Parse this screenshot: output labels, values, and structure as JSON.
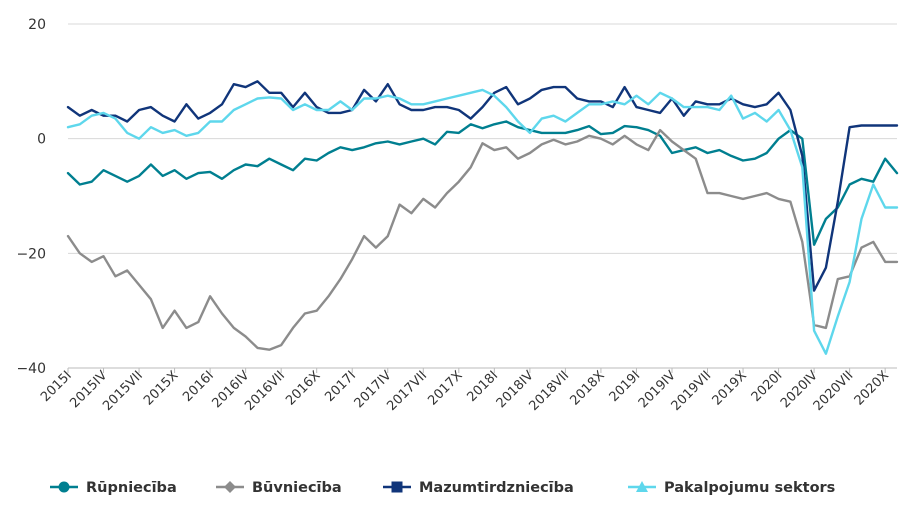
{
  "chart_data": {
    "type": "line",
    "x": [
      "2015I",
      "2015II",
      "2015III",
      "2015IV",
      "2015V",
      "2015VI",
      "2015VII",
      "2015VIII",
      "2015IX",
      "2015X",
      "2015XI",
      "2015XII",
      "2016I",
      "2016II",
      "2016III",
      "2016IV",
      "2016V",
      "2016VI",
      "2016VII",
      "2016VIII",
      "2016IX",
      "2016X",
      "2016XI",
      "2016XII",
      "2017I",
      "2017II",
      "2017III",
      "2017IV",
      "2017V",
      "2017VI",
      "2017VII",
      "2017VIII",
      "2017IX",
      "2017X",
      "2017XI",
      "2017XII",
      "2018I",
      "2018II",
      "2018III",
      "2018IV",
      "2018V",
      "2018VI",
      "2018VII",
      "2018VIII",
      "2018IX",
      "2018X",
      "2018XI",
      "2018XII",
      "2019I",
      "2019II",
      "2019III",
      "2019IV",
      "2019V",
      "2019VI",
      "2019VII",
      "2019VIII",
      "2019IX",
      "2019X",
      "2019XI",
      "2019XII",
      "2020I",
      "2020II",
      "2020III",
      "2020IV",
      "2020V",
      "2020VI",
      "2020VII",
      "2020VIII",
      "2020IX",
      "2020X",
      "2020XI"
    ],
    "x_tick_labels": [
      "2015I",
      "2015IV",
      "2015VII",
      "2015X",
      "2016I",
      "2016IV",
      "2016VII",
      "2016X",
      "2017I",
      "2017IV",
      "2017VII",
      "2017X",
      "2018I",
      "2018IV",
      "2018VII",
      "2018X",
      "2019I",
      "2019IV",
      "2019VII",
      "2019X",
      "2020I",
      "2020IV",
      "2020VII",
      "2020X"
    ],
    "y_ticks": [
      "20",
      "0",
      "−20",
      "−40"
    ],
    "ylim": [
      -40,
      20
    ],
    "grid": true,
    "legend_position": "bottom",
    "series": [
      {
        "name": "Rūpniecība",
        "color": "#007f90",
        "marker": "circle",
        "values": [
          -6,
          -8,
          -7.5,
          -5.5,
          -6.5,
          -7.5,
          -6.5,
          -4.5,
          -6.5,
          -5.5,
          -7,
          -6,
          -5.8,
          -7,
          -5.5,
          -4.5,
          -4.8,
          -3.5,
          -4.5,
          -5.5,
          -3.5,
          -3.8,
          -2.5,
          -1.5,
          -2,
          -1.5,
          -0.8,
          -0.5,
          -1,
          -0.5,
          0,
          -1,
          1.2,
          1,
          2.5,
          1.8,
          2.5,
          3,
          2,
          1.5,
          1,
          1,
          1,
          1.5,
          2.2,
          0.8,
          1,
          2.2,
          2,
          1.5,
          0.5,
          -2.5,
          -2,
          -1.5,
          -2.5,
          -2,
          -3,
          -3.8,
          -3.5,
          -2.5,
          0,
          1.5,
          0,
          -18.5,
          -14,
          -12,
          -8,
          -7,
          -7.5,
          -3.5,
          -6
        ]
      },
      {
        "name": "Būvniecība",
        "color": "#8c8c8c",
        "marker": "diamond",
        "values": [
          -17,
          -20,
          -21.5,
          -20.5,
          -24,
          -23,
          -25.5,
          -28,
          -33,
          -30,
          -33,
          -32,
          -27.5,
          -30.5,
          -33,
          -34.5,
          -36.5,
          -36.8,
          -36,
          -33,
          -30.5,
          -30,
          -27.5,
          -24.5,
          -21,
          -17,
          -19,
          -17,
          -11.5,
          -13,
          -10.5,
          -12,
          -9.5,
          -7.5,
          -5,
          -0.8,
          -2,
          -1.5,
          -3.5,
          -2.5,
          -1,
          -0.2,
          -1,
          -0.5,
          0.5,
          0,
          -1,
          0.5,
          -1,
          -2,
          1.5,
          -0.5,
          -2,
          -3.5,
          -9.5,
          -9.5,
          -10,
          -10.5,
          -10,
          -9.5,
          -10.5,
          -11,
          -18,
          -32.5,
          -33,
          -24.5,
          -24,
          -19,
          -18,
          -21.5,
          -21.5
        ]
      },
      {
        "name": "Mazumtirdzniecība",
        "color": "#10357a",
        "marker": "square",
        "values": [
          5.5,
          4,
          5,
          4,
          4,
          3,
          5,
          5.5,
          4,
          3,
          6,
          3.5,
          4.5,
          6,
          9.5,
          9,
          10,
          8,
          8,
          5.5,
          8,
          5.5,
          4.5,
          4.5,
          5,
          8.5,
          6.5,
          9.5,
          6,
          5,
          5,
          5.5,
          5.5,
          5,
          3.5,
          5.5,
          8,
          9,
          6,
          7,
          8.5,
          9,
          9,
          7,
          6.5,
          6.5,
          5.5,
          9,
          5.5,
          5,
          4.5,
          7,
          4,
          6.5,
          6,
          6,
          7,
          6,
          5.5,
          6,
          8,
          5,
          -3,
          -26.5,
          -22.5,
          -11,
          2,
          2.3,
          2.3,
          2.3,
          2.3
        ]
      },
      {
        "name": "Pakalpojumu sektors",
        "color": "#5ed7ec",
        "marker": "triangle",
        "values": [
          2,
          2.5,
          4,
          4.5,
          3.5,
          1,
          0,
          2,
          1,
          1.5,
          0.5,
          1,
          3,
          3,
          5,
          6,
          7,
          7.2,
          7,
          5,
          6,
          5,
          5,
          6.5,
          5,
          7,
          7,
          7.5,
          7,
          6,
          6,
          6.5,
          7,
          7.5,
          8,
          8.5,
          7.5,
          5.5,
          3,
          1,
          3.5,
          4,
          3,
          4.5,
          6,
          6,
          6.5,
          6,
          7.5,
          6,
          8,
          7,
          5.5,
          5.5,
          5.5,
          5,
          7.5,
          3.5,
          4.5,
          3,
          5,
          1.5,
          -5,
          -33.5,
          -37.5,
          -31,
          -25,
          -14,
          -8,
          -12,
          -12
        ]
      }
    ]
  }
}
